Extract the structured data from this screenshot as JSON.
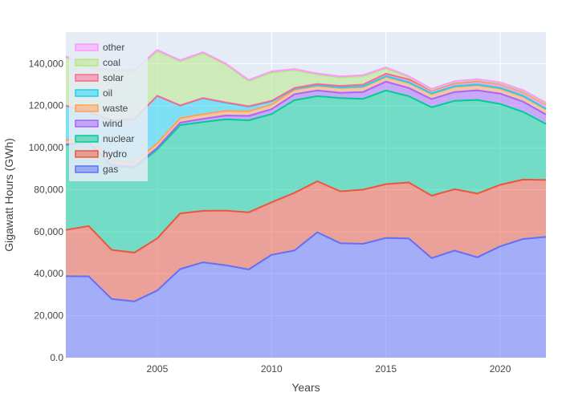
{
  "chart_data": {
    "type": "area",
    "stacked": true,
    "xlabel": "Years",
    "ylabel": "Gigawatt Hours (GWh)",
    "xlim": [
      2001,
      2022
    ],
    "ylim": [
      0,
      155000
    ],
    "x_ticks": [
      2005,
      2010,
      2015,
      2020
    ],
    "x_tick_labels": [
      "2005",
      "2010",
      "2015",
      "2020"
    ],
    "y_ticks": [
      0,
      20000,
      40000,
      60000,
      80000,
      100000,
      120000,
      140000
    ],
    "y_tick_labels": [
      "0.0",
      "20,000",
      "40,000",
      "60,000",
      "80,000",
      "100,000",
      "120,000",
      "140,000"
    ],
    "grid": true,
    "legend_position": "top-left",
    "x": [
      2001,
      2002,
      2003,
      2004,
      2005,
      2006,
      2007,
      2008,
      2009,
      2010,
      2011,
      2012,
      2013,
      2014,
      2015,
      2016,
      2017,
      2018,
      2019,
      2020,
      2021,
      2022
    ],
    "series": [
      {
        "name": "gas",
        "color": "#636efa",
        "values": [
          38800,
          38700,
          28000,
          26800,
          32000,
          42200,
          45400,
          44000,
          42000,
          49000,
          51000,
          59700,
          54500,
          54200,
          57000,
          56800,
          47400,
          51000,
          47800,
          53000,
          56500,
          57500
        ]
      },
      {
        "name": "hydro",
        "color": "#EF553B",
        "values": [
          22000,
          24000,
          23300,
          23200,
          24800,
          26500,
          24500,
          26000,
          27200,
          25000,
          27500,
          24300,
          24700,
          25800,
          25600,
          26600,
          29700,
          29200,
          30300,
          29300,
          28300,
          27100
        ]
      },
      {
        "name": "nuclear",
        "color": "#00cc96",
        "values": [
          40500,
          40000,
          40000,
          40400,
          42400,
          42000,
          42300,
          43500,
          43800,
          42000,
          44100,
          40500,
          44400,
          43200,
          44600,
          41100,
          42100,
          42100,
          44600,
          38500,
          32200,
          26700
        ]
      },
      {
        "name": "wind",
        "color": "#ab63fa",
        "values": [
          200,
          300,
          400,
          600,
          800,
          1200,
          1500,
          1800,
          2100,
          2300,
          2800,
          2700,
          2500,
          3300,
          4200,
          3900,
          3900,
          4200,
          4600,
          4900,
          4900,
          4500
        ]
      },
      {
        "name": "waste",
        "color": "#FFA15A",
        "values": [
          2000,
          2000,
          2100,
          2100,
          2100,
          2100,
          2200,
          2200,
          2200,
          2200,
          2200,
          2200,
          2300,
          2300,
          2300,
          2400,
          2400,
          2400,
          2400,
          2400,
          2400,
          2400
        ]
      },
      {
        "name": "oil",
        "color": "#19d3f3",
        "values": [
          16500,
          12000,
          19200,
          20500,
          22600,
          6000,
          7600,
          3800,
          2200,
          1500,
          400,
          300,
          300,
          300,
          300,
          300,
          300,
          300,
          300,
          300,
          300,
          300
        ]
      },
      {
        "name": "solar",
        "color": "#FF6692",
        "values": [
          0,
          0,
          0,
          0,
          0,
          100,
          100,
          200,
          200,
          300,
          400,
          600,
          700,
          900,
          1200,
          1400,
          1400,
          1600,
          1800,
          2000,
          2100,
          2200
        ]
      },
      {
        "name": "coal",
        "color": "#B6E880",
        "values": [
          23000,
          21000,
          23500,
          22800,
          21300,
          21000,
          21300,
          18000,
          12000,
          13500,
          8500,
          4500,
          4000,
          4000,
          2500,
          1000,
          300,
          300,
          300,
          200,
          200,
          200
        ]
      },
      {
        "name": "other",
        "color": "#FF97FF",
        "values": [
          500,
          500,
          500,
          500,
          500,
          500,
          500,
          500,
          500,
          500,
          500,
          500,
          500,
          500,
          500,
          500,
          500,
          500,
          500,
          500,
          500,
          500
        ]
      }
    ]
  }
}
